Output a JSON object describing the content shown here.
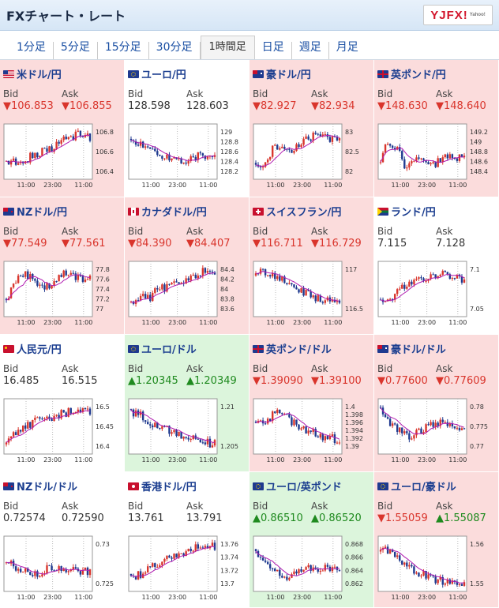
{
  "header": {
    "title": "FXチャート・レート",
    "logo": "YJFX!",
    "logo_sub": "Yahoo!"
  },
  "tabs": [
    {
      "label": "1分足",
      "active": false
    },
    {
      "label": "5分足",
      "active": false
    },
    {
      "label": "15分足",
      "active": false
    },
    {
      "label": "30分足",
      "active": false
    },
    {
      "label": "1時間足",
      "active": true
    },
    {
      "label": "日足",
      "active": false
    },
    {
      "label": "週足",
      "active": false
    },
    {
      "label": "月足",
      "active": false
    }
  ],
  "labels": {
    "bid": "Bid",
    "ask": "Ask"
  },
  "colors": {
    "down_bg": "#fbdcdc",
    "up_bg": "#dcf5dc",
    "neutral_bg": "#ffffff",
    "down_text": "#d9352c",
    "up_text": "#1f8a1f",
    "candle_up": "#d9352c",
    "candle_down": "#1f3a8f",
    "ma": "#b01ab0"
  },
  "pairs": [
    {
      "name": "米ドル/円",
      "flag": "us",
      "bg": "down",
      "bid": "▼106.853",
      "bid_dir": "dn",
      "ask": "▼106.855",
      "ask_dir": "dn",
      "ticks": [
        "106.8",
        "106.6",
        "106.4"
      ],
      "times": [
        "11:00",
        "23:00",
        "11:00"
      ]
    },
    {
      "name": "ユーロ/円",
      "flag": "eu",
      "bg": "neutral",
      "bid": "128.598",
      "bid_dir": "nt",
      "ask": "128.603",
      "ask_dir": "nt",
      "ticks": [
        "129",
        "128.8",
        "128.6",
        "128.4",
        "128.2"
      ],
      "times": [
        "11:00",
        "23:00",
        "11:00"
      ]
    },
    {
      "name": "豪ドル/円",
      "flag": "au",
      "bg": "down",
      "bid": "▼82.927",
      "bid_dir": "dn",
      "ask": "▼82.934",
      "ask_dir": "dn",
      "ticks": [
        "83",
        "82.5",
        "82"
      ],
      "times": [
        "11:00",
        "23:00",
        "11:00"
      ]
    },
    {
      "name": "英ポンド/円",
      "flag": "gb",
      "bg": "down",
      "bid": "▼148.630",
      "bid_dir": "dn",
      "ask": "▼148.640",
      "ask_dir": "dn",
      "ticks": [
        "149.2",
        "149",
        "148.8",
        "148.6",
        "148.4"
      ],
      "times": [
        "11:00",
        "23:00",
        "11:00"
      ]
    },
    {
      "name": "NZドル/円",
      "flag": "nz",
      "bg": "down",
      "bid": "▼77.549",
      "bid_dir": "dn",
      "ask": "▼77.561",
      "ask_dir": "dn",
      "ticks": [
        "77.8",
        "77.6",
        "77.4",
        "77.2",
        "77"
      ],
      "times": [
        "11:00",
        "23:00",
        "11:00"
      ]
    },
    {
      "name": "カナダドル/円",
      "flag": "ca",
      "bg": "down",
      "bid": "▼84.390",
      "bid_dir": "dn",
      "ask": "▼84.407",
      "ask_dir": "dn",
      "ticks": [
        "84.4",
        "84.2",
        "84",
        "83.8",
        "83.6"
      ],
      "times": [
        "11:00",
        "23:00",
        "11:00"
      ]
    },
    {
      "name": "スイスフラン/円",
      "flag": "ch",
      "bg": "down",
      "bid": "▼116.711",
      "bid_dir": "dn",
      "ask": "▼116.729",
      "ask_dir": "dn",
      "ticks": [
        "117",
        "116.5"
      ],
      "times": [
        "11:00",
        "23:00",
        "11:00"
      ]
    },
    {
      "name": "ランド/円",
      "flag": "za",
      "bg": "neutral",
      "bid": "7.115",
      "bid_dir": "nt",
      "ask": "7.128",
      "ask_dir": "nt",
      "ticks": [
        "7.1",
        "7.05"
      ],
      "times": [
        "11:00",
        "23:00",
        "11:00"
      ]
    },
    {
      "name": "人民元/円",
      "flag": "cn",
      "bg": "neutral",
      "bid": "16.485",
      "bid_dir": "nt",
      "ask": "16.515",
      "ask_dir": "nt",
      "ticks": [
        "16.5",
        "16.45",
        "16.4"
      ],
      "times": [
        "11:00",
        "23:00",
        "11:00"
      ]
    },
    {
      "name": "ユーロ/ドル",
      "flag": "eu",
      "bg": "up",
      "bid": "▲1.20345",
      "bid_dir": "up",
      "ask": "▲1.20349",
      "ask_dir": "up",
      "ticks": [
        "1.21",
        "1.205"
      ],
      "times": [
        "11:00",
        "23:00",
        "11:00"
      ]
    },
    {
      "name": "英ポンド/ドル",
      "flag": "gb",
      "bg": "down",
      "bid": "▼1.39090",
      "bid_dir": "dn",
      "ask": "▼1.39100",
      "ask_dir": "dn",
      "ticks": [
        "1.4",
        "1.398",
        "1.396",
        "1.394",
        "1.392",
        "1.39"
      ],
      "times": [
        "11:00",
        "23:00",
        "11:00"
      ]
    },
    {
      "name": "豪ドル/ドル",
      "flag": "au",
      "bg": "down",
      "bid": "▼0.77600",
      "bid_dir": "dn",
      "ask": "▼0.77609",
      "ask_dir": "dn",
      "ticks": [
        "0.78",
        "0.775",
        "0.77"
      ],
      "times": [
        "11:00",
        "23:00",
        "11:00"
      ]
    },
    {
      "name": "NZドル/ドル",
      "flag": "nz",
      "bg": "neutral",
      "bid": "0.72574",
      "bid_dir": "nt",
      "ask": "0.72590",
      "ask_dir": "nt",
      "ticks": [
        "0.73",
        "0.725"
      ],
      "times": [
        "11:00",
        "23:00",
        "11:00"
      ]
    },
    {
      "name": "香港ドル/円",
      "flag": "hk",
      "bg": "neutral",
      "bid": "13.761",
      "bid_dir": "nt",
      "ask": "13.791",
      "ask_dir": "nt",
      "ticks": [
        "13.76",
        "13.74",
        "13.72",
        "13.7"
      ],
      "times": [
        "11:00",
        "23:00",
        "11:00"
      ]
    },
    {
      "name": "ユーロ/英ポンド",
      "flag": "eu",
      "bg": "up",
      "bid": "▲0.86510",
      "bid_dir": "up",
      "ask": "▲0.86520",
      "ask_dir": "up",
      "ticks": [
        "0.868",
        "0.866",
        "0.864",
        "0.862"
      ],
      "times": [
        "11:00",
        "23:00",
        "11:00"
      ]
    },
    {
      "name": "ユーロ/豪ドル",
      "flag": "eu",
      "bg": "down",
      "bid": "▼1.55059",
      "bid_dir": "dn",
      "ask": "▲1.55087",
      "ask_dir": "up",
      "ticks": [
        "1.56",
        "1.55"
      ],
      "times": [
        "11:00",
        "23:00",
        "11:00"
      ]
    }
  ]
}
